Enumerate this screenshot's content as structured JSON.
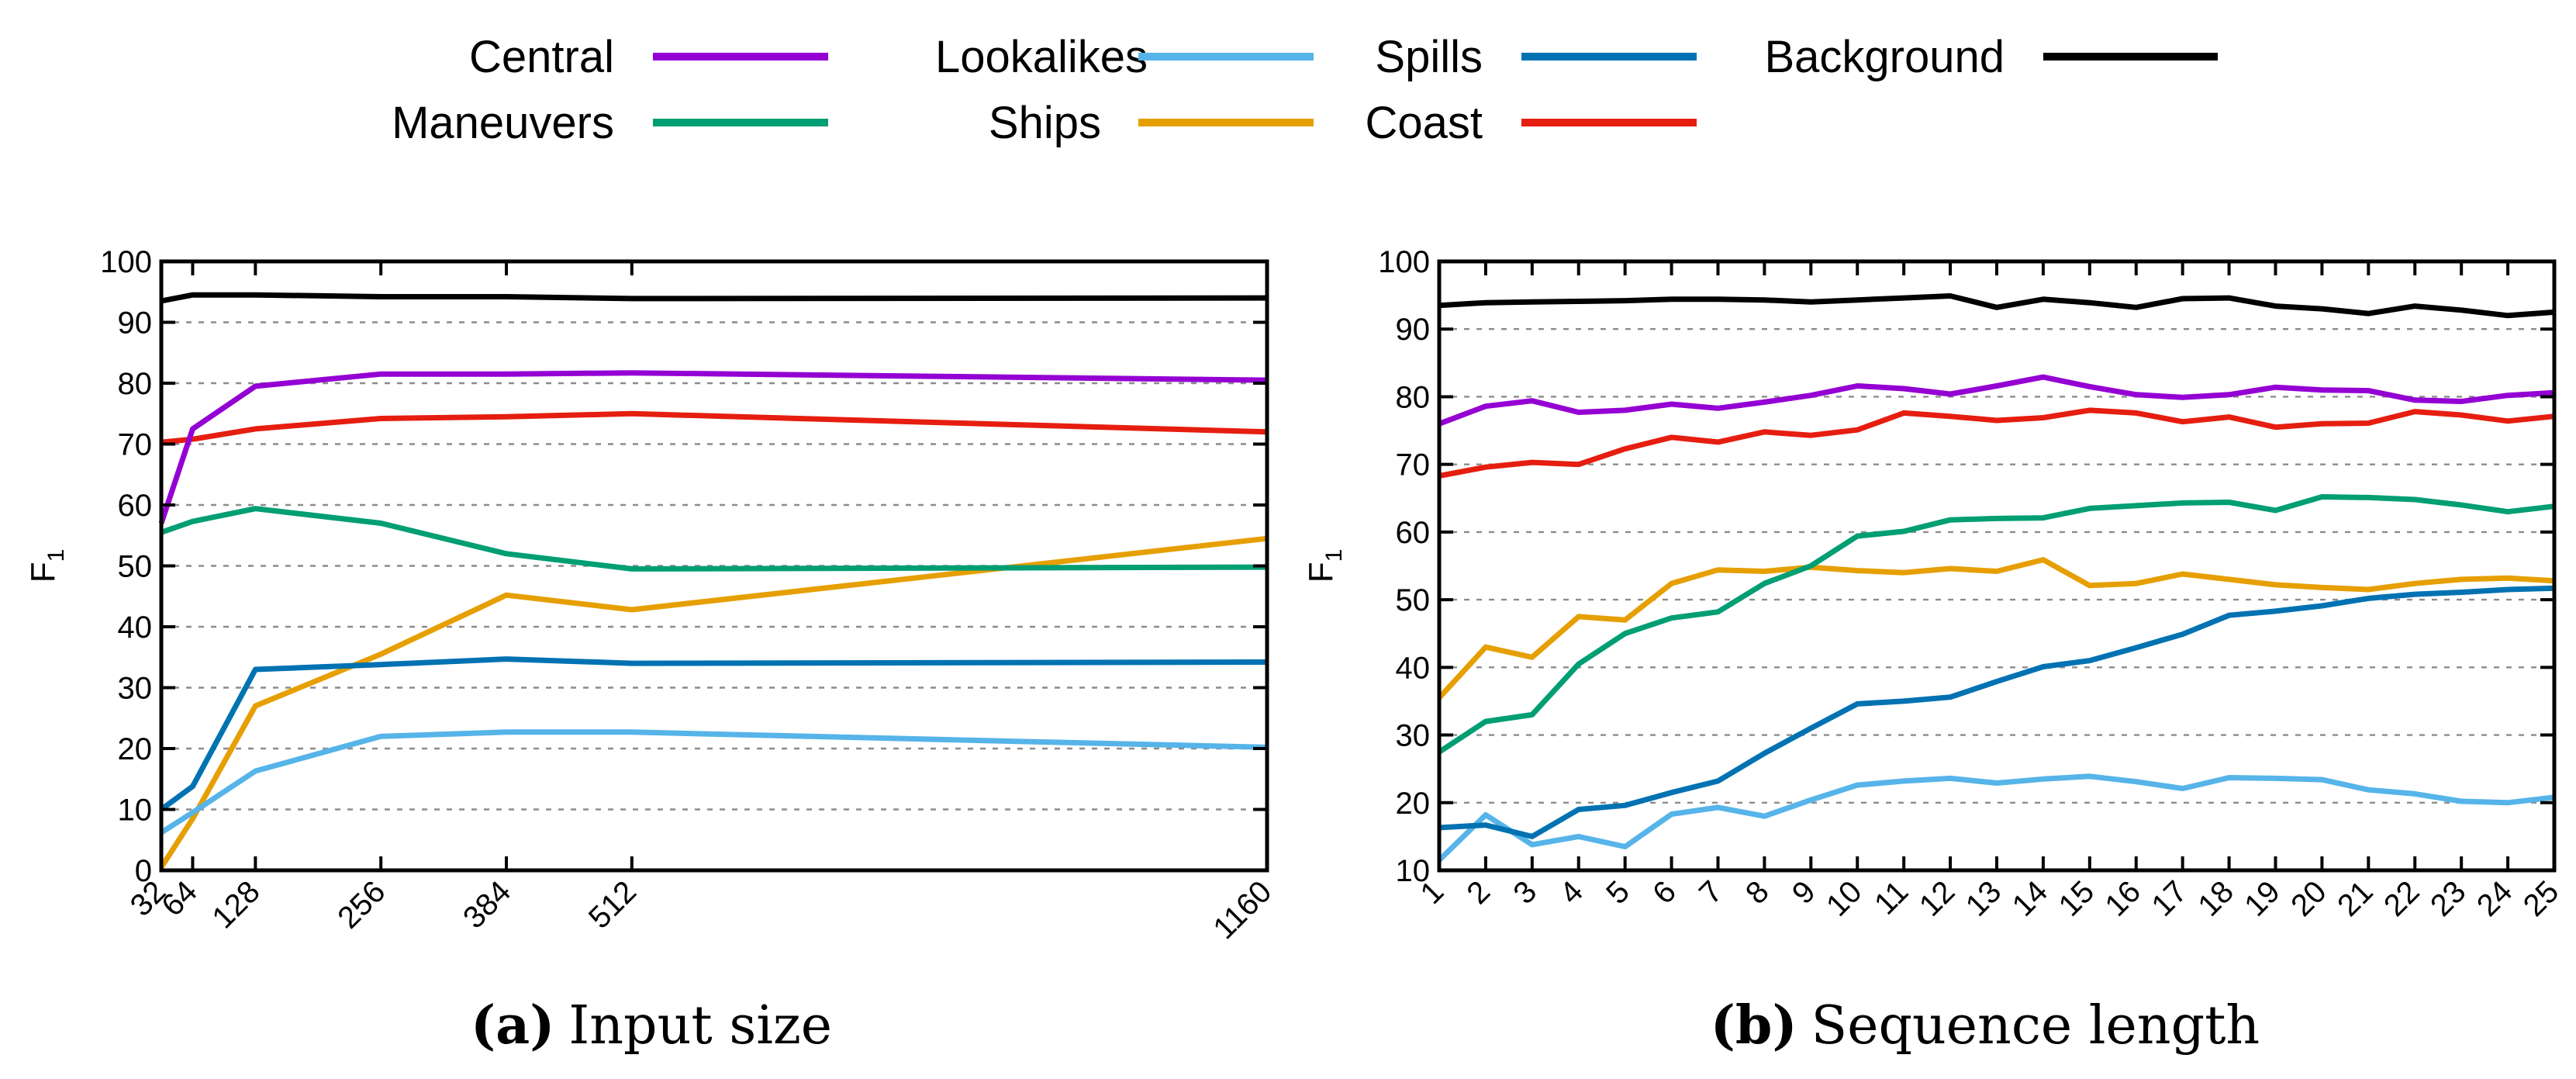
{
  "legend": [
    {
      "name": "Central",
      "color": "#9400D3"
    },
    {
      "name": "Lookalikes",
      "color": "#56B4E9"
    },
    {
      "name": "Spills",
      "color": "#0072B2"
    },
    {
      "name": "Background",
      "color": "#000000"
    },
    {
      "name": "Maneuvers",
      "color": "#009E73"
    },
    {
      "name": "Ships",
      "color": "#E69F00"
    },
    {
      "name": "Coast",
      "color": "#E51E10"
    }
  ],
  "chart_data": [
    {
      "type": "line",
      "caption_tag": "(a)",
      "caption_text": "Input size",
      "title": "",
      "xlabel": "",
      "ylabel": "F",
      "ylabel_sub": "1",
      "ylim": [
        0,
        100
      ],
      "yticks": [
        0,
        10,
        20,
        30,
        40,
        50,
        60,
        70,
        80,
        90,
        100
      ],
      "xlim": [
        32,
        1160
      ],
      "xticks": [
        32,
        64,
        128,
        256,
        384,
        512,
        1160
      ],
      "x": [
        32,
        64,
        128,
        256,
        384,
        512,
        1160
      ],
      "grid": "y-dashed",
      "series": [
        {
          "name": "Background",
          "values": [
            93.5,
            94.5,
            94.5,
            94.2,
            94.2,
            93.9,
            94.0
          ]
        },
        {
          "name": "Central",
          "values": [
            57.0,
            72.5,
            79.5,
            81.5,
            81.5,
            81.7,
            80.5
          ]
        },
        {
          "name": "Coast",
          "values": [
            70.3,
            70.8,
            72.5,
            74.2,
            74.5,
            75.0,
            72.0
          ]
        },
        {
          "name": "Maneuvers",
          "values": [
            55.5,
            57.3,
            59.4,
            57.0,
            52.0,
            49.5,
            49.8
          ]
        },
        {
          "name": "Ships",
          "values": [
            0.5,
            8.5,
            27.0,
            35.5,
            45.2,
            42.8,
            54.5
          ]
        },
        {
          "name": "Spills",
          "values": [
            10.0,
            13.8,
            33.0,
            33.8,
            34.7,
            34.0,
            34.2
          ]
        },
        {
          "name": "Lookalikes",
          "values": [
            6.2,
            9.5,
            16.3,
            22.0,
            22.7,
            22.7,
            20.2
          ]
        }
      ]
    },
    {
      "type": "line",
      "caption_tag": "(b)",
      "caption_text": "Sequence length",
      "title": "",
      "xlabel": "",
      "ylabel": "F",
      "ylabel_sub": "1",
      "ylim": [
        10,
        100
      ],
      "yticks": [
        10,
        20,
        30,
        40,
        50,
        60,
        70,
        80,
        90,
        100
      ],
      "xlim": [
        1,
        25
      ],
      "xticks": [
        1,
        2,
        3,
        4,
        5,
        6,
        7,
        8,
        9,
        10,
        11,
        12,
        13,
        14,
        15,
        16,
        17,
        18,
        19,
        20,
        21,
        22,
        23,
        24,
        25
      ],
      "x": [
        1,
        2,
        3,
        4,
        5,
        6,
        7,
        8,
        9,
        10,
        11,
        12,
        13,
        14,
        15,
        16,
        17,
        18,
        19,
        20,
        21,
        22,
        23,
        24,
        25
      ],
      "grid": "y-dashed",
      "series": [
        {
          "name": "Background",
          "values": [
            93.5,
            93.9,
            94.0,
            94.1,
            94.2,
            94.4,
            94.4,
            94.3,
            94.0,
            94.3,
            94.6,
            94.9,
            93.2,
            94.4,
            93.9,
            93.2,
            94.5,
            94.6,
            93.4,
            93.0,
            92.3,
            93.4,
            92.8,
            92.0,
            92.5
          ]
        },
        {
          "name": "Central",
          "values": [
            76.0,
            78.6,
            79.4,
            77.7,
            78.0,
            78.9,
            78.3,
            79.2,
            80.2,
            81.6,
            81.2,
            80.4,
            81.6,
            82.9,
            81.5,
            80.3,
            79.9,
            80.3,
            81.4,
            81.0,
            80.9,
            79.5,
            79.3,
            80.2,
            80.6
          ]
        },
        {
          "name": "Coast",
          "values": [
            68.3,
            69.6,
            70.3,
            70.0,
            72.3,
            74.0,
            73.3,
            74.8,
            74.3,
            75.1,
            77.6,
            77.1,
            76.5,
            76.9,
            78.0,
            77.6,
            76.3,
            77.0,
            75.5,
            76.0,
            76.1,
            77.8,
            77.3,
            76.4,
            77.1
          ]
        },
        {
          "name": "Maneuvers",
          "values": [
            27.5,
            32.0,
            33.0,
            40.5,
            45.0,
            47.3,
            48.2,
            52.4,
            55.0,
            59.4,
            60.1,
            61.8,
            62.0,
            62.1,
            63.5,
            63.9,
            64.3,
            64.4,
            63.2,
            65.2,
            65.1,
            64.8,
            64.0,
            63.0,
            63.8
          ]
        },
        {
          "name": "Ships",
          "values": [
            35.5,
            43.0,
            41.5,
            47.5,
            47.0,
            52.4,
            54.4,
            54.2,
            54.8,
            54.3,
            54.0,
            54.6,
            54.2,
            55.9,
            52.1,
            52.4,
            53.8,
            53.0,
            52.2,
            51.8,
            51.5,
            52.4,
            53.0,
            53.2,
            52.8
          ]
        },
        {
          "name": "Spills",
          "values": [
            16.3,
            16.7,
            15.0,
            19.0,
            19.6,
            21.5,
            23.2,
            27.3,
            31.0,
            34.6,
            35.0,
            35.6,
            37.9,
            40.1,
            41.0,
            42.9,
            44.9,
            47.7,
            48.3,
            49.1,
            50.2,
            50.8,
            51.1,
            51.5,
            51.7
          ]
        },
        {
          "name": "Lookalikes",
          "values": [
            11.5,
            18.2,
            13.8,
            15.0,
            13.5,
            18.3,
            19.3,
            18.0,
            20.4,
            22.6,
            23.2,
            23.6,
            22.9,
            23.5,
            23.9,
            23.1,
            22.1,
            23.7,
            23.6,
            23.4,
            21.9,
            21.3,
            20.2,
            20.0,
            20.8
          ]
        }
      ]
    }
  ]
}
